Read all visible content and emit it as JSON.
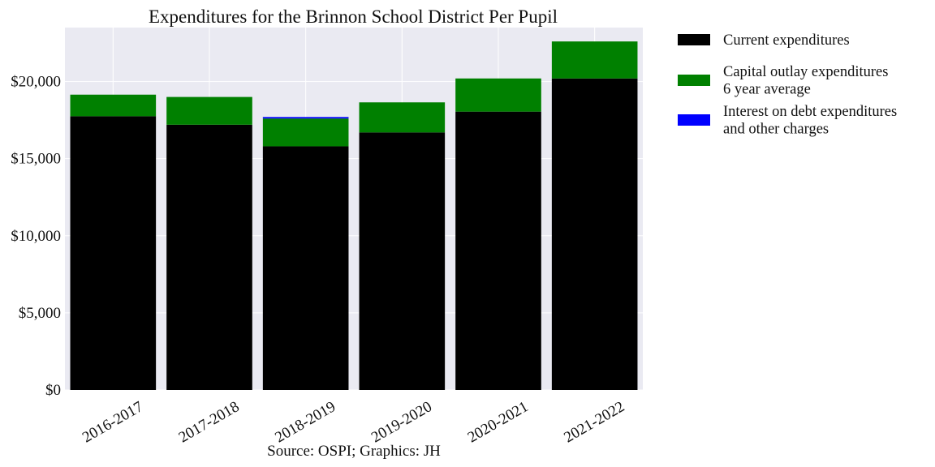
{
  "chart_data": {
    "type": "bar",
    "stacked": true,
    "title": "Expenditures for the Brinnon School District Per Pupil",
    "source_note": "Source: OSPI; Graphics: JH",
    "categories": [
      "2016-2017",
      "2017-2018",
      "2018-2019",
      "2019-2020",
      "2020-2021",
      "2021-2022"
    ],
    "series": [
      {
        "name": "Current expenditures",
        "legend_lines": [
          "Current expenditures"
        ],
        "color": "#000000",
        "values": [
          17750,
          17200,
          15800,
          16700,
          18050,
          20200
        ]
      },
      {
        "name": "Capital outlay expenditures 6 year average",
        "legend_lines": [
          "Capital outlay expenditures",
          "6 year average"
        ],
        "color": "#008000",
        "values": [
          1400,
          1800,
          1800,
          1950,
          2150,
          2400
        ]
      },
      {
        "name": "Interest on debt expenditures and other charges",
        "legend_lines": [
          "Interest on debt expenditures",
          "and other charges"
        ],
        "color": "#0000ff",
        "values": [
          0,
          0,
          100,
          0,
          0,
          0
        ]
      }
    ],
    "ylim": [
      0,
      23500
    ],
    "yticks": [
      0,
      5000,
      10000,
      15000,
      20000
    ],
    "ytick_labels": [
      "$0",
      "$5,000",
      "$10,000",
      "$15,000",
      "$20,000"
    ],
    "grid": true,
    "legend_position": "outside-right"
  },
  "colors": {
    "plot_background": "#eaeaf2",
    "grid": "#ffffff"
  }
}
